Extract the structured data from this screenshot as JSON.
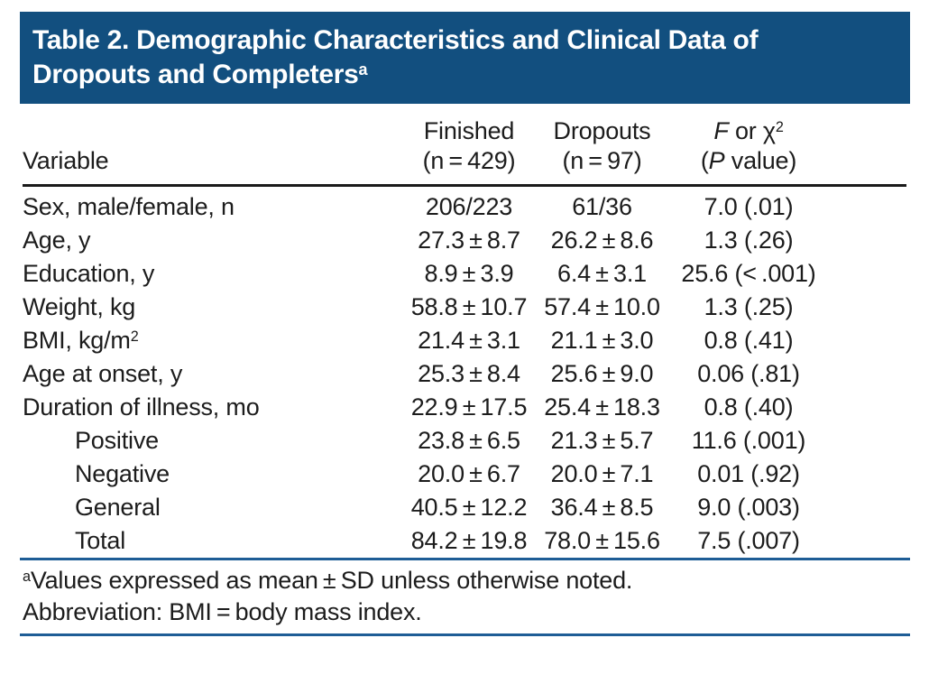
{
  "colors": {
    "title_bg": "#124f7f",
    "rule_blue": "#1e5d96",
    "header_rule": "#1a1a1a",
    "text": "#1c1c1c",
    "title_text": "#ffffff"
  },
  "title": {
    "line1": "Table 2. Demographic Characteristics and Clinical Data of",
    "line2": "Dropouts and Completers",
    "footnote_marker": "a"
  },
  "table": {
    "header": {
      "col1": "Variable",
      "col2_line1": "Finished",
      "col2_line2": "(n = 429)",
      "col3_line1": "Dropouts",
      "col3_line2": "(n = 97)",
      "col4_f": "F",
      "col4_mid": " or χ",
      "col4_sup": "2",
      "col4_p_open": "(",
      "col4_p": "P",
      "col4_p_rest": " value)"
    },
    "rows": [
      {
        "label": "Sex, male/female, n",
        "indent": false,
        "finished": "206/223",
        "dropouts": "61/36",
        "stat": "7.0 (.01)"
      },
      {
        "label": "Age, y",
        "indent": false,
        "finished": "27.3 ± 8.7",
        "dropouts": "26.2 ± 8.6",
        "stat": "1.3 (.26)"
      },
      {
        "label": "Education, y",
        "indent": false,
        "finished": "8.9 ± 3.9",
        "dropouts": "6.4 ± 3.1",
        "stat": "25.6 (< .001)"
      },
      {
        "label": "Weight, kg",
        "indent": false,
        "finished": "58.8 ± 10.7",
        "dropouts": "57.4 ± 10.0",
        "stat": "1.3 (.25)"
      },
      {
        "label": "BMI, kg/m",
        "label_sup": "2",
        "indent": false,
        "finished": "21.4 ± 3.1",
        "dropouts": "21.1 ± 3.0",
        "stat": "0.8 (.41)"
      },
      {
        "label": "Age at onset, y",
        "indent": false,
        "finished": "25.3 ± 8.4",
        "dropouts": "25.6 ± 9.0",
        "stat": "0.06 (.81)"
      },
      {
        "label": "Duration of illness, mo",
        "indent": false,
        "finished": "22.9 ± 17.5",
        "dropouts": "25.4 ± 18.3",
        "stat": "0.8 (.40)"
      },
      {
        "label": "Positive",
        "indent": true,
        "finished": "23.8 ± 6.5",
        "dropouts": "21.3 ± 5.7",
        "stat": "11.6 (.001)"
      },
      {
        "label": "Negative",
        "indent": true,
        "finished": "20.0 ± 6.7",
        "dropouts": "20.0 ± 7.1",
        "stat": "0.01 (.92)"
      },
      {
        "label": "General",
        "indent": true,
        "finished": "40.5 ± 12.2",
        "dropouts": "36.4 ± 8.5",
        "stat": "9.0 (.003)"
      },
      {
        "label": "Total",
        "indent": true,
        "finished": "84.2 ± 19.8",
        "dropouts": "78.0 ± 15.6",
        "stat": "7.5 (.007)"
      }
    ]
  },
  "footnotes": {
    "marker": "a",
    "line1": "Values expressed as mean ± SD unless otherwise noted.",
    "line2": "Abbreviation: BMI = body mass index."
  }
}
